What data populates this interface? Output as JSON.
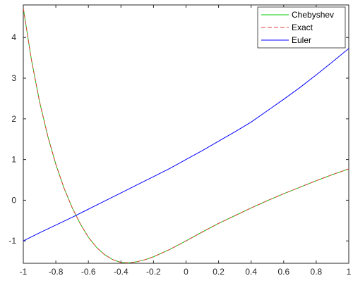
{
  "chart_data": {
    "type": "line",
    "xlim": [
      -1,
      1
    ],
    "ylim": [
      -1.55,
      4.8
    ],
    "xticks": [
      -1,
      -0.8,
      -0.6,
      -0.4,
      -0.2,
      0,
      0.2,
      0.4,
      0.6,
      0.8,
      1
    ],
    "xtick_labels": [
      "-1",
      "-0.8",
      "-0.6",
      "-0.4",
      "-0.2",
      "0",
      "0.2",
      "0.4",
      "0.6",
      "0.8",
      "1"
    ],
    "yticks": [
      -1,
      0,
      1,
      2,
      3,
      4
    ],
    "ytick_labels": [
      "-1",
      "0",
      "1",
      "2",
      "3",
      "4"
    ],
    "grid": false,
    "legend_position": "top-right",
    "series": [
      {
        "name": "Chebyshev",
        "color": "#00cc00",
        "style": "solid",
        "x": [
          -1,
          -0.95,
          -0.9,
          -0.85,
          -0.8,
          -0.75,
          -0.7,
          -0.65,
          -0.6,
          -0.55,
          -0.5,
          -0.45,
          -0.4,
          -0.35,
          -0.3,
          -0.25,
          -0.2,
          -0.1,
          0,
          0.1,
          0.2,
          0.3,
          0.4,
          0.5,
          0.6,
          0.7,
          0.8,
          0.9,
          1
        ],
        "y": [
          4.72,
          3.45,
          2.42,
          1.58,
          0.88,
          0.3,
          -0.18,
          -0.58,
          -0.91,
          -1.16,
          -1.34,
          -1.46,
          -1.53,
          -1.54,
          -1.51,
          -1.46,
          -1.39,
          -1.21,
          -1.0,
          -0.78,
          -0.57,
          -0.38,
          -0.19,
          -0.01,
          0.16,
          0.32,
          0.48,
          0.63,
          0.77
        ]
      },
      {
        "name": "Exact",
        "color": "#e04040",
        "style": "dashed",
        "x": [
          -1,
          -0.95,
          -0.9,
          -0.85,
          -0.8,
          -0.75,
          -0.7,
          -0.65,
          -0.6,
          -0.55,
          -0.5,
          -0.45,
          -0.4,
          -0.35,
          -0.3,
          -0.25,
          -0.2,
          -0.1,
          0,
          0.1,
          0.2,
          0.3,
          0.4,
          0.5,
          0.6,
          0.7,
          0.8,
          0.9,
          1
        ],
        "y": [
          4.72,
          3.45,
          2.42,
          1.58,
          0.88,
          0.3,
          -0.18,
          -0.58,
          -0.91,
          -1.16,
          -1.34,
          -1.46,
          -1.53,
          -1.54,
          -1.51,
          -1.46,
          -1.39,
          -1.21,
          -1.0,
          -0.78,
          -0.57,
          -0.38,
          -0.19,
          -0.01,
          0.16,
          0.32,
          0.48,
          0.63,
          0.77
        ]
      },
      {
        "name": "Euler",
        "color": "#0000ff",
        "style": "solid",
        "x": [
          -1,
          -0.9,
          -0.8,
          -0.7,
          -0.6,
          -0.5,
          -0.4,
          -0.3,
          -0.2,
          -0.1,
          0,
          0.1,
          0.2,
          0.3,
          0.4,
          0.5,
          0.6,
          0.7,
          0.8,
          0.9,
          1
        ],
        "y": [
          -1.0,
          -0.8,
          -0.61,
          -0.42,
          -0.22,
          -0.02,
          0.18,
          0.38,
          0.58,
          0.78,
          1.0,
          1.22,
          1.45,
          1.68,
          1.92,
          2.2,
          2.48,
          2.77,
          3.08,
          3.4,
          3.73
        ]
      }
    ]
  }
}
